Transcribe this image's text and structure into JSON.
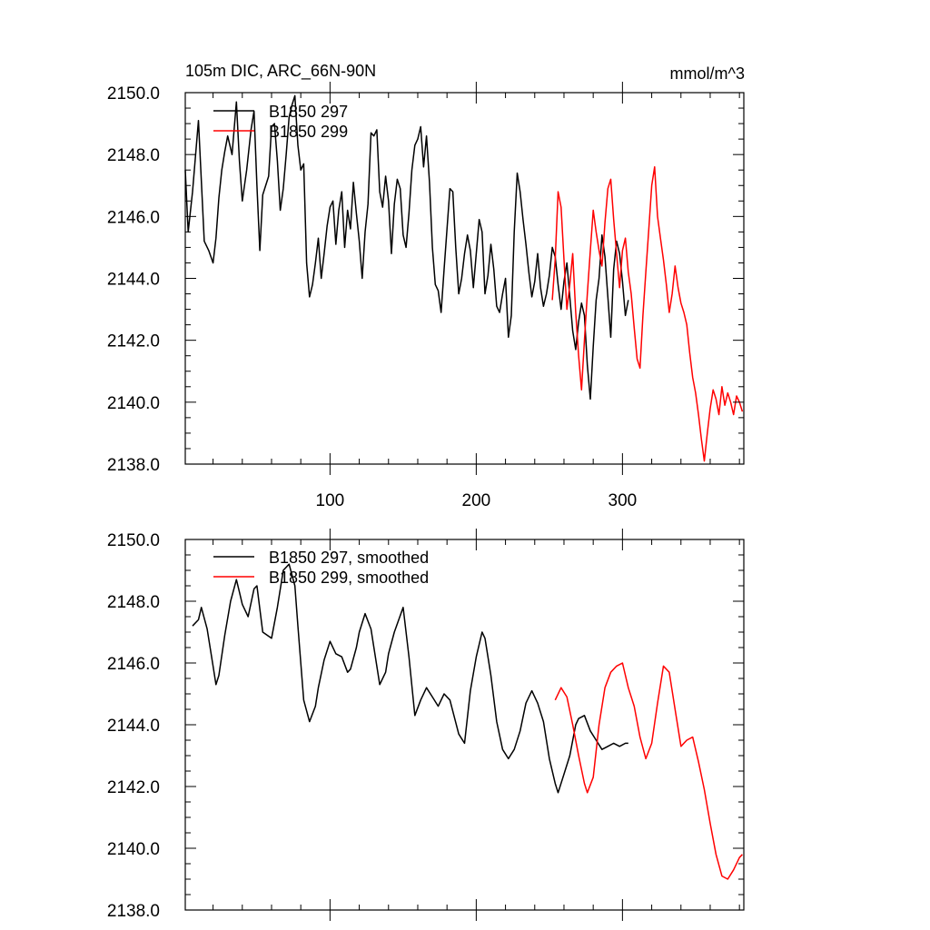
{
  "figure": {
    "title_left": "105m DIC, ARC_66N-90N",
    "title_right": "mmol/m^3"
  },
  "colors": {
    "series_297": "#000000",
    "series_299": "#ff0000",
    "axis": "#000000",
    "background": "#ffffff"
  },
  "chart_data": [
    {
      "type": "line",
      "title": "105m DIC, ARC_66N-90N",
      "units": "mmol/m^3",
      "xlabel": "",
      "ylabel": "",
      "xlim": [
        1,
        383
      ],
      "ylim": [
        2138.0,
        2150.0
      ],
      "x_ticks": [
        100,
        200,
        300
      ],
      "x_tick_labels": [
        "100",
        "200",
        "300"
      ],
      "y_ticks": [
        2138,
        2140,
        2142,
        2144,
        2146,
        2148,
        2150
      ],
      "y_tick_labels": [
        "2138.0",
        "2140.0",
        "2142.0",
        "2144.0",
        "2146.0",
        "2148.0",
        "2150.0"
      ],
      "legend": {
        "location": "top-left",
        "entries": [
          "B1850 297",
          "B1850 299"
        ]
      },
      "series": [
        {
          "name": "B1850 297",
          "color": "#000000",
          "x": [
            1,
            3,
            6,
            10,
            14,
            17,
            20,
            22,
            24,
            26,
            28,
            30,
            33,
            36,
            38,
            40,
            43,
            46,
            48,
            50,
            52,
            54,
            58,
            60,
            62,
            64,
            66,
            68,
            70,
            72,
            74,
            76,
            78,
            80,
            82,
            84,
            86,
            88,
            90,
            92,
            94,
            96,
            98,
            100,
            102,
            104,
            106,
            108,
            110,
            112,
            114,
            116,
            118,
            120,
            122,
            124,
            126,
            128,
            130,
            132,
            134,
            136,
            138,
            140,
            142,
            144,
            146,
            148,
            150,
            152,
            154,
            156,
            158,
            160,
            162,
            164,
            166,
            168,
            170,
            172,
            174,
            176,
            178,
            180,
            182,
            184,
            186,
            188,
            190,
            192,
            194,
            196,
            198,
            200,
            202,
            204,
            206,
            208,
            210,
            212,
            214,
            216,
            218,
            220,
            222,
            224,
            226,
            228,
            230,
            232,
            234,
            236,
            238,
            240,
            242,
            244,
            246,
            248,
            250,
            252,
            254,
            256,
            258,
            260,
            262,
            264,
            266,
            268,
            270,
            272,
            274,
            276,
            278,
            280,
            282,
            284,
            286,
            288,
            290,
            292,
            294,
            296,
            298,
            300,
            302,
            304
          ],
          "values": [
            2147.5,
            2145.5,
            2146.8,
            2149.1,
            2145.2,
            2144.9,
            2144.5,
            2145.3,
            2146.6,
            2147.5,
            2148.1,
            2148.6,
            2148.0,
            2149.7,
            2147.8,
            2146.5,
            2147.5,
            2148.8,
            2149.4,
            2147.0,
            2144.9,
            2146.7,
            2147.3,
            2148.9,
            2149.0,
            2147.8,
            2146.2,
            2146.9,
            2148.0,
            2149.2,
            2149.6,
            2149.9,
            2148.3,
            2147.5,
            2147.7,
            2144.5,
            2143.4,
            2143.8,
            2144.5,
            2145.3,
            2144.0,
            2144.8,
            2145.7,
            2146.3,
            2146.5,
            2145.1,
            2146.2,
            2146.8,
            2145.0,
            2146.2,
            2145.6,
            2147.1,
            2146.1,
            2145.2,
            2144.0,
            2145.5,
            2146.4,
            2148.7,
            2148.6,
            2148.8,
            2146.8,
            2146.3,
            2147.3,
            2146.5,
            2144.8,
            2146.4,
            2147.2,
            2146.9,
            2145.4,
            2145.0,
            2146.1,
            2147.5,
            2148.3,
            2148.5,
            2148.9,
            2147.6,
            2148.6,
            2147.1,
            2145.0,
            2143.8,
            2143.6,
            2142.9,
            2144.3,
            2145.6,
            2146.9,
            2146.8,
            2145.0,
            2143.5,
            2144.0,
            2144.8,
            2145.4,
            2144.9,
            2143.7,
            2144.8,
            2145.9,
            2145.5,
            2143.5,
            2144.1,
            2145.1,
            2144.3,
            2143.1,
            2142.9,
            2143.5,
            2144.0,
            2142.1,
            2142.8,
            2145.5,
            2147.4,
            2146.8,
            2145.9,
            2145.1,
            2144.2,
            2143.4,
            2143.9,
            2144.8,
            2143.7,
            2143.1,
            2143.5,
            2144.1,
            2145.0,
            2144.7,
            2143.8,
            2143.0,
            2143.9,
            2144.5,
            2143.4,
            2142.3,
            2141.7,
            2142.6,
            2143.2,
            2142.8,
            2141.2,
            2140.1,
            2141.8,
            2143.3,
            2144.0,
            2145.4,
            2144.7,
            2143.4,
            2142.1,
            2144.3,
            2145.2,
            2144.8,
            2143.9,
            2142.8,
            2143.3
          ]
        },
        {
          "name": "B1850 299",
          "color": "#ff0000",
          "x": [
            252,
            254,
            256,
            258,
            260,
            262,
            264,
            266,
            268,
            270,
            272,
            274,
            276,
            278,
            280,
            282,
            284,
            286,
            288,
            290,
            292,
            294,
            296,
            298,
            300,
            302,
            304,
            306,
            308,
            310,
            312,
            314,
            316,
            318,
            320,
            322,
            324,
            326,
            328,
            330,
            332,
            334,
            336,
            338,
            340,
            342,
            344,
            346,
            348,
            350,
            352,
            354,
            356,
            358,
            360,
            362,
            364,
            366,
            368,
            370,
            372,
            374,
            376,
            378,
            380,
            382
          ],
          "values": [
            2143.3,
            2144.6,
            2146.8,
            2146.3,
            2144.6,
            2143.0,
            2143.8,
            2144.8,
            2142.9,
            2141.5,
            2140.4,
            2142.0,
            2143.5,
            2144.9,
            2146.2,
            2145.5,
            2144.9,
            2144.4,
            2145.8,
            2146.9,
            2147.2,
            2145.9,
            2144.8,
            2143.7,
            2144.9,
            2145.3,
            2144.2,
            2143.5,
            2142.4,
            2141.4,
            2141.1,
            2142.8,
            2144.2,
            2145.6,
            2147.0,
            2147.6,
            2146.0,
            2145.3,
            2144.6,
            2143.8,
            2142.9,
            2143.5,
            2144.4,
            2143.7,
            2143.2,
            2142.9,
            2142.5,
            2141.6,
            2140.8,
            2140.3,
            2139.6,
            2138.8,
            2138.1,
            2139.0,
            2139.8,
            2140.4,
            2140.1,
            2139.6,
            2140.5,
            2139.9,
            2140.3,
            2140.0,
            2139.6,
            2140.2,
            2140.0,
            2139.7
          ]
        }
      ]
    },
    {
      "type": "line",
      "title": "",
      "xlabel": "",
      "ylabel": "",
      "xlim": [
        1,
        383
      ],
      "ylim": [
        2138.0,
        2150.0
      ],
      "x_ticks": [
        100,
        200,
        300
      ],
      "y_ticks": [
        2138,
        2140,
        2142,
        2144,
        2146,
        2148,
        2150
      ],
      "y_tick_labels": [
        "2138.0",
        "2140.0",
        "2142.0",
        "2144.0",
        "2146.0",
        "2148.0",
        "2150.0"
      ],
      "legend": {
        "location": "top-left",
        "entries": [
          "B1850 297, smoothed",
          "B1850 299, smoothed"
        ]
      },
      "series": [
        {
          "name": "B1850 297, smoothed",
          "color": "#000000",
          "x": [
            6,
            10,
            12,
            16,
            20,
            22,
            24,
            28,
            32,
            36,
            38,
            40,
            44,
            48,
            50,
            54,
            60,
            64,
            68,
            72,
            76,
            78,
            82,
            86,
            90,
            92,
            96,
            100,
            104,
            108,
            112,
            114,
            118,
            120,
            124,
            128,
            134,
            138,
            140,
            144,
            150,
            154,
            158,
            162,
            166,
            170,
            174,
            178,
            182,
            188,
            192,
            196,
            200,
            204,
            206,
            210,
            214,
            218,
            222,
            226,
            230,
            234,
            238,
            242,
            246,
            250,
            254,
            256,
            260,
            264,
            268,
            270,
            274,
            278,
            282,
            286,
            290,
            294,
            298,
            302,
            304
          ],
          "values": [
            2147.2,
            2147.4,
            2147.8,
            2147.1,
            2145.9,
            2145.3,
            2145.6,
            2146.9,
            2148.0,
            2148.7,
            2148.3,
            2147.9,
            2147.5,
            2148.4,
            2148.5,
            2147.0,
            2146.8,
            2147.8,
            2149.0,
            2149.2,
            2148.5,
            2147.2,
            2144.8,
            2144.1,
            2144.6,
            2145.2,
            2146.1,
            2146.7,
            2146.3,
            2146.2,
            2145.7,
            2145.8,
            2146.5,
            2147.0,
            2147.6,
            2147.1,
            2145.3,
            2145.7,
            2146.3,
            2147.0,
            2147.8,
            2146.2,
            2144.3,
            2144.8,
            2145.2,
            2144.9,
            2144.6,
            2145.0,
            2144.8,
            2143.7,
            2143.4,
            2145.1,
            2146.2,
            2147.0,
            2146.8,
            2145.6,
            2144.1,
            2143.2,
            2142.9,
            2143.2,
            2143.8,
            2144.7,
            2145.1,
            2144.7,
            2144.1,
            2142.9,
            2142.1,
            2141.8,
            2142.4,
            2143.0,
            2144.0,
            2144.2,
            2144.3,
            2143.8,
            2143.5,
            2143.2,
            2143.3,
            2143.4,
            2143.3,
            2143.4,
            2143.4
          ]
        },
        {
          "name": "B1850 299, smoothed",
          "color": "#ff0000",
          "x": [
            254,
            258,
            262,
            266,
            270,
            274,
            276,
            280,
            284,
            288,
            292,
            296,
            300,
            304,
            308,
            312,
            316,
            320,
            324,
            328,
            332,
            336,
            340,
            344,
            348,
            352,
            356,
            360,
            364,
            368,
            372,
            376,
            380,
            382
          ],
          "values": [
            2144.8,
            2145.2,
            2144.9,
            2144.0,
            2143.0,
            2142.1,
            2141.8,
            2142.3,
            2144.0,
            2145.2,
            2145.7,
            2145.9,
            2146.0,
            2145.2,
            2144.6,
            2143.6,
            2142.9,
            2143.4,
            2144.7,
            2145.9,
            2145.7,
            2144.5,
            2143.3,
            2143.5,
            2143.6,
            2142.8,
            2141.9,
            2140.8,
            2139.8,
            2139.1,
            2139.0,
            2139.3,
            2139.7,
            2139.8
          ]
        }
      ]
    }
  ]
}
